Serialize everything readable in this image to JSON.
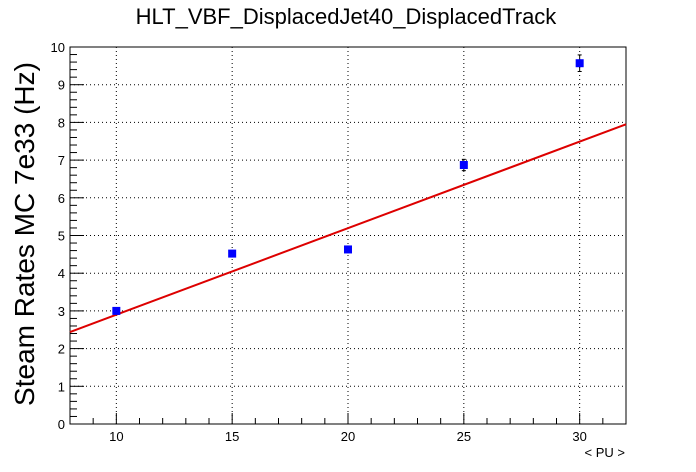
{
  "chart_data": {
    "type": "scatter",
    "title": "HLT_VBF_DisplacedJet40_DisplacedTrack",
    "xlabel": "< PU >",
    "ylabel": "Steam Rates MC 7e33 (Hz)",
    "xlim": [
      8,
      32
    ],
    "ylim": [
      0,
      10
    ],
    "xticks": [
      10,
      15,
      20,
      25,
      30
    ],
    "yticks": [
      0,
      1,
      2,
      3,
      4,
      5,
      6,
      7,
      8,
      9,
      10
    ],
    "grid": true,
    "series": [
      {
        "marker": "square",
        "color": "#0000ff",
        "points": [
          {
            "x": 10,
            "y": 3.0,
            "err": 0.05
          },
          {
            "x": 15,
            "y": 4.52,
            "err": 0.06
          },
          {
            "x": 20,
            "y": 4.63,
            "err": 0.07
          },
          {
            "x": 25,
            "y": 6.87,
            "err": 0.15
          },
          {
            "x": 30,
            "y": 9.57,
            "err": 0.22
          }
        ]
      }
    ],
    "fit": {
      "color": "#dd0000",
      "x": [
        8,
        32
      ],
      "y": [
        2.44,
        7.95
      ]
    }
  }
}
